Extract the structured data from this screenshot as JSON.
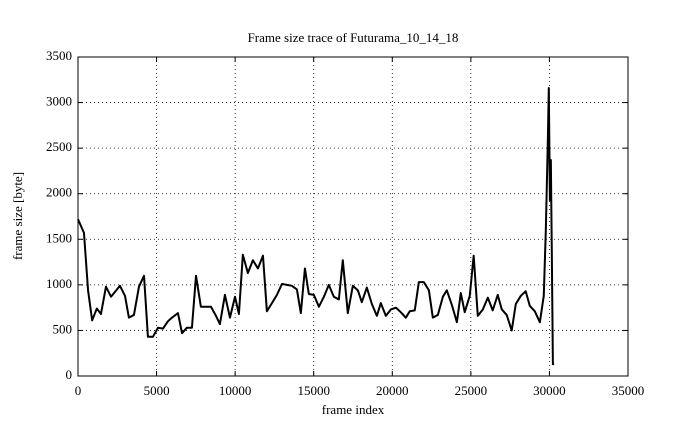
{
  "chart_data": {
    "type": "line",
    "title": "Frame size trace of Futurama_10_14_18",
    "xlabel": "frame index",
    "ylabel": "frame size [byte]",
    "xlim": [
      0,
      35000
    ],
    "ylim": [
      0,
      3500
    ],
    "xticks": [
      0,
      5000,
      10000,
      15000,
      20000,
      25000,
      30000,
      35000
    ],
    "yticks": [
      0,
      500,
      1000,
      1500,
      2000,
      2500,
      3000,
      3500
    ],
    "grid": true,
    "series": [
      {
        "name": "frame size",
        "color": "#000000",
        "x": [
          0,
          380,
          640,
          900,
          1200,
          1460,
          1780,
          2100,
          2670,
          2990,
          3240,
          3560,
          3880,
          4200,
          4450,
          4770,
          5090,
          5410,
          5720,
          5980,
          6360,
          6620,
          6930,
          7250,
          7510,
          7820,
          8140,
          8460,
          8780,
          9030,
          9350,
          9670,
          9990,
          10240,
          10490,
          10810,
          11130,
          11450,
          11770,
          12020,
          12340,
          12660,
          12980,
          13290,
          13610,
          13930,
          14180,
          14440,
          14690,
          15010,
          15330,
          15650,
          15960,
          16280,
          16600,
          16850,
          17170,
          17490,
          17810,
          18060,
          18380,
          18700,
          19020,
          19270,
          19590,
          19910,
          20230,
          20540,
          20860,
          21110,
          21430,
          21690,
          22010,
          22330,
          22580,
          22900,
          23220,
          23470,
          23790,
          24110,
          24360,
          24610,
          24930,
          25180,
          25440,
          25760,
          26080,
          26390,
          26710,
          26970,
          27280,
          27600,
          27860,
          28180,
          28490,
          28750,
          29070,
          29390,
          29640,
          29770,
          29900,
          29960,
          30030,
          30090,
          30150,
          30220,
          30300
        ],
        "values": [
          1720,
          1570,
          940,
          610,
          740,
          680,
          980,
          870,
          990,
          880,
          640,
          670,
          980,
          1100,
          430,
          430,
          530,
          520,
          600,
          640,
          690,
          470,
          530,
          530,
          1100,
          760,
          760,
          760,
          660,
          570,
          890,
          640,
          870,
          680,
          1330,
          1130,
          1270,
          1180,
          1320,
          710,
          800,
          890,
          1010,
          1000,
          990,
          950,
          690,
          1180,
          900,
          890,
          760,
          870,
          1000,
          870,
          840,
          1270,
          690,
          990,
          940,
          810,
          970,
          790,
          660,
          800,
          660,
          730,
          750,
          700,
          640,
          710,
          720,
          1030,
          1030,
          940,
          640,
          670,
          870,
          940,
          780,
          590,
          910,
          700,
          880,
          1320,
          660,
          730,
          860,
          720,
          890,
          730,
          670,
          500,
          790,
          880,
          930,
          770,
          710,
          590,
          880,
          1600,
          2590,
          3160,
          1930,
          2370,
          1380,
          130,
          130
        ]
      }
    ]
  }
}
